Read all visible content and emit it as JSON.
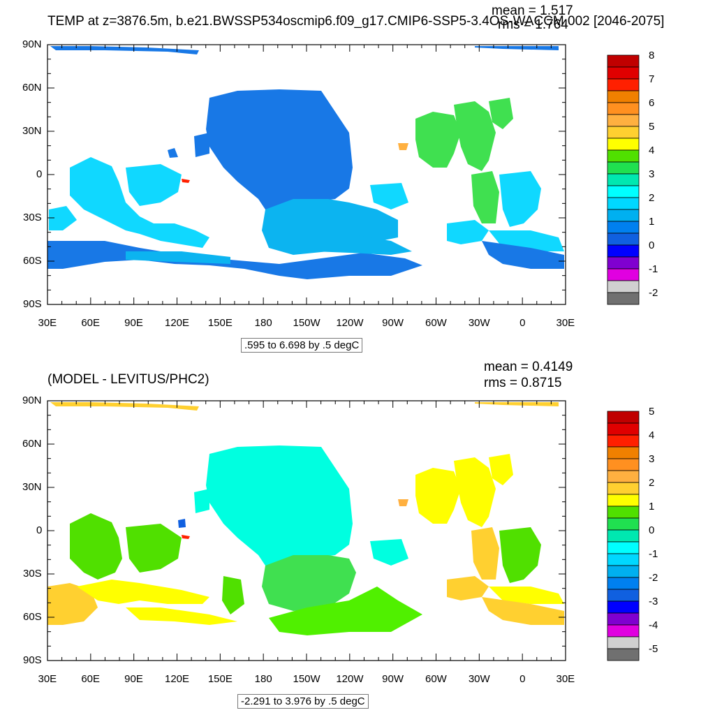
{
  "panels": [
    {
      "title": "TEMP at z=3876.5m, b.e21.BWSSP534oscmip6.f09_g17.CMIP6-SSP5-3.4OS-WACCM.002 [2046-2075]",
      "mean_text": "mean = 1.517",
      "rms_text": "rms = 1.764",
      "range_text": ".595 to 6.698 by .5 degC",
      "colorbar_labels": [
        "8",
        "7",
        "6",
        "5",
        "4",
        "3",
        "2",
        "1",
        "0",
        "-1",
        "-2"
      ],
      "colorbar_colors": [
        "#c00000",
        "#e00000",
        "#ff2000",
        "#f08000",
        "#ff9020",
        "#ffb040",
        "#ffd030",
        "#ffff00",
        "#50e000",
        "#20e050",
        "#00e8b0",
        "#00ffff",
        "#00d8ff",
        "#00b0f0",
        "#0080f0",
        "#1060e0",
        "#0000ff",
        "#8000d0",
        "#e000e0",
        "#d0d0d0",
        "#707070"
      ]
    },
    {
      "title": "(MODEL - LEVITUS/PHC2)",
      "mean_text": "mean = 0.4149",
      "rms_text": "rms = 0.8715",
      "range_text": "-2.291 to 3.976 by .5 degC",
      "colorbar_labels": [
        "5",
        "4",
        "3",
        "2",
        "1",
        "0",
        "-1",
        "-2",
        "-3",
        "-4",
        "-5"
      ],
      "colorbar_colors": [
        "#c00000",
        "#e00000",
        "#ff2000",
        "#f08000",
        "#ff9020",
        "#ffb040",
        "#ffd030",
        "#ffff00",
        "#50e000",
        "#20e050",
        "#00e8b0",
        "#00ffff",
        "#00d8ff",
        "#00b0f0",
        "#0080f0",
        "#1060e0",
        "#0000ff",
        "#8000d0",
        "#e000e0",
        "#d0d0d0",
        "#707070"
      ]
    }
  ],
  "axes": {
    "lat_labels": [
      "90N",
      "60N",
      "30N",
      "0",
      "30S",
      "60S",
      "90S"
    ],
    "lon_labels": [
      "30E",
      "60E",
      "90E",
      "120E",
      "150E",
      "180",
      "150W",
      "120W",
      "90W",
      "60W",
      "30W",
      "0",
      "30E"
    ]
  }
}
